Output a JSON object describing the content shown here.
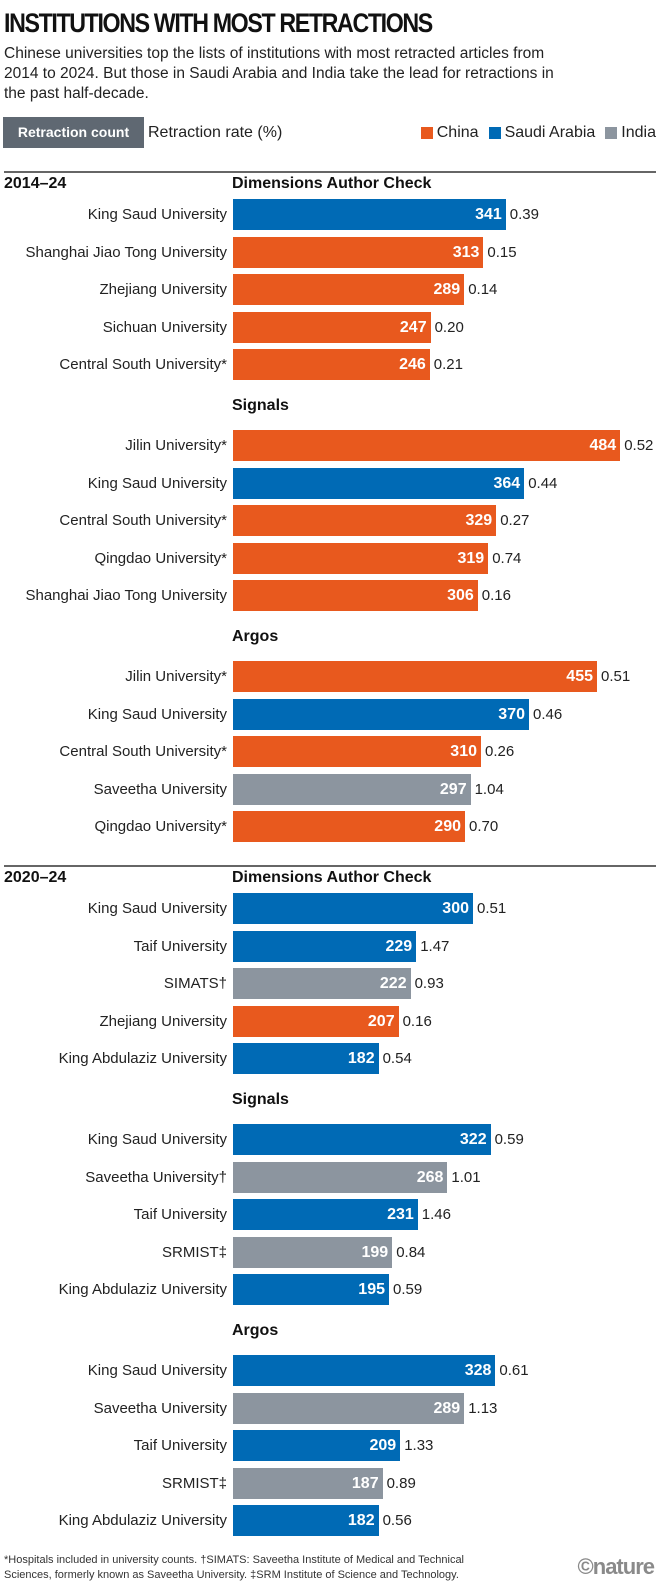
{
  "title": "INSTITUTIONS WITH MOST RETRACTIONS",
  "subtitle": "Chinese universities top the lists of institutions with most retracted articles from 2014 to 2024. But those in Saudi Arabia and India take the lead for retractions in the past half-decade.",
  "legend": {
    "count_label": "Retraction count",
    "rate_label": "Retraction rate (%)",
    "countries": [
      {
        "name": "China",
        "color": "#e8591e"
      },
      {
        "name": "Saudi Arabia",
        "color": "#006ab5"
      },
      {
        "name": "India",
        "color": "#8c959f"
      }
    ]
  },
  "footnote": "*Hospitals included in university counts. †SIMATS: Saveetha Institute of Medical and Technical Sciences, formerly known as Saveetha University. ‡SRM Institute of Science and Technology.",
  "logo": "©nature",
  "chart_data": {
    "type": "bar",
    "orientation": "horizontal",
    "title": "INSTITUTIONS WITH MOST RETRACTIONS",
    "value_label": "Retraction count",
    "secondary_label": "Retraction rate (%)",
    "colors": {
      "China": "#e8591e",
      "Saudi Arabia": "#006ab5",
      "India": "#8c959f"
    },
    "periods": [
      {
        "label": "2014–24",
        "groups": [
          {
            "source": "Dimensions Author Check",
            "rows": [
              {
                "institution": "King Saud University",
                "country": "Saudi Arabia",
                "count": 341,
                "rate": "0.39"
              },
              {
                "institution": "Shanghai Jiao Tong University",
                "country": "China",
                "count": 313,
                "rate": "0.15"
              },
              {
                "institution": "Zhejiang University",
                "country": "China",
                "count": 289,
                "rate": "0.14"
              },
              {
                "institution": "Sichuan University",
                "country": "China",
                "count": 247,
                "rate": "0.20"
              },
              {
                "institution": "Central South University*",
                "country": "China",
                "count": 246,
                "rate": "0.21"
              }
            ]
          },
          {
            "source": "Signals",
            "rows": [
              {
                "institution": "Jilin University*",
                "country": "China",
                "count": 484,
                "rate": "0.52"
              },
              {
                "institution": "King Saud University",
                "country": "Saudi Arabia",
                "count": 364,
                "rate": "0.44"
              },
              {
                "institution": "Central South University*",
                "country": "China",
                "count": 329,
                "rate": "0.27"
              },
              {
                "institution": "Qingdao University*",
                "country": "China",
                "count": 319,
                "rate": "0.74"
              },
              {
                "institution": "Shanghai Jiao Tong University",
                "country": "China",
                "count": 306,
                "rate": "0.16"
              }
            ]
          },
          {
            "source": "Argos",
            "rows": [
              {
                "institution": "Jilin University*",
                "country": "China",
                "count": 455,
                "rate": "0.51"
              },
              {
                "institution": "King Saud University",
                "country": "Saudi Arabia",
                "count": 370,
                "rate": "0.46"
              },
              {
                "institution": "Central South University*",
                "country": "China",
                "count": 310,
                "rate": "0.26"
              },
              {
                "institution": "Saveetha University",
                "country": "India",
                "count": 297,
                "rate": "1.04"
              },
              {
                "institution": "Qingdao University*",
                "country": "China",
                "count": 290,
                "rate": "0.70"
              }
            ]
          }
        ]
      },
      {
        "label": "2020–24",
        "groups": [
          {
            "source": "Dimensions Author Check",
            "rows": [
              {
                "institution": "King Saud University",
                "country": "Saudi Arabia",
                "count": 300,
                "rate": "0.51"
              },
              {
                "institution": "Taif University",
                "country": "Saudi Arabia",
                "count": 229,
                "rate": "1.47"
              },
              {
                "institution": "SIMATS†",
                "country": "India",
                "count": 222,
                "rate": "0.93"
              },
              {
                "institution": "Zhejiang University",
                "country": "China",
                "count": 207,
                "rate": "0.16"
              },
              {
                "institution": "King Abdulaziz University",
                "country": "Saudi Arabia",
                "count": 182,
                "rate": "0.54"
              }
            ]
          },
          {
            "source": "Signals",
            "rows": [
              {
                "institution": "King Saud University",
                "country": "Saudi Arabia",
                "count": 322,
                "rate": "0.59"
              },
              {
                "institution": "Saveetha University†",
                "country": "India",
                "count": 268,
                "rate": "1.01"
              },
              {
                "institution": "Taif University",
                "country": "Saudi Arabia",
                "count": 231,
                "rate": "1.46"
              },
              {
                "institution": "SRMIST‡",
                "country": "India",
                "count": 199,
                "rate": "0.84"
              },
              {
                "institution": "King Abdulaziz University",
                "country": "Saudi Arabia",
                "count": 195,
                "rate": "0.59"
              }
            ]
          },
          {
            "source": "Argos",
            "rows": [
              {
                "institution": "King Saud University",
                "country": "Saudi Arabia",
                "count": 328,
                "rate": "0.61"
              },
              {
                "institution": "Saveetha University",
                "country": "India",
                "count": 289,
                "rate": "1.13"
              },
              {
                "institution": "Taif University",
                "country": "Saudi Arabia",
                "count": 209,
                "rate": "1.33"
              },
              {
                "institution": "SRMIST‡",
                "country": "India",
                "count": 187,
                "rate": "0.89"
              },
              {
                "institution": "King Abdulaziz University",
                "country": "Saudi Arabia",
                "count": 182,
                "rate": "0.56"
              }
            ]
          }
        ]
      }
    ]
  }
}
